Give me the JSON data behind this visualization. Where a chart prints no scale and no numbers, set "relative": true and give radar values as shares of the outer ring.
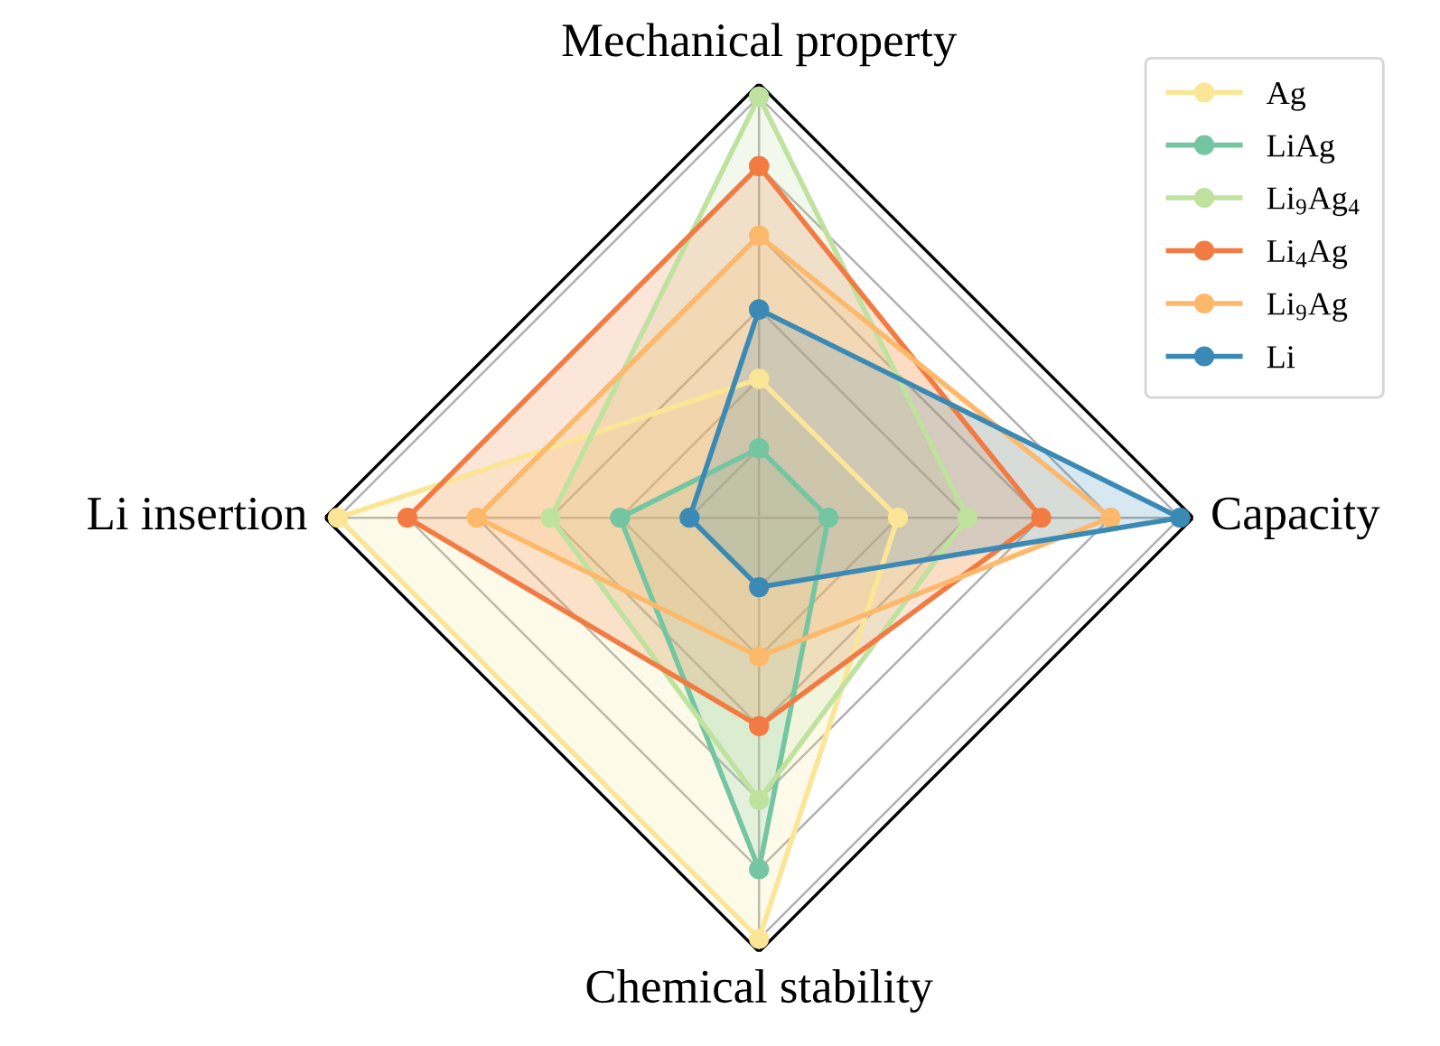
{
  "chart_data": {
    "type": "radar",
    "relative": true,
    "grid": true,
    "legend": "top right",
    "marker": "circle",
    "line_style": "solid",
    "categories": [
      "Mechanical property",
      "Capacity",
      "Chemical stability",
      "Li insertion"
    ],
    "series": [
      {
        "name": "Ag",
        "color": "#fae696",
        "values": [
          0.32,
          0.32,
          0.97,
          0.97
        ]
      },
      {
        "name": "LiAg",
        "color": "#74c6a3",
        "values": [
          0.16,
          0.16,
          0.81,
          0.32
        ]
      },
      {
        "name": "Li$_{9}$Ag$_{4}$",
        "color": "#bfe29f",
        "values": [
          0.97,
          0.48,
          0.65,
          0.48
        ]
      },
      {
        "name": "Li$_{4}$Ag",
        "color": "#f27b43",
        "values": [
          0.81,
          0.65,
          0.48,
          0.81
        ]
      },
      {
        "name": "Li$_{9}$Ag",
        "color": "#fdb96b",
        "values": [
          0.65,
          0.81,
          0.32,
          0.65
        ]
      },
      {
        "name": "Li",
        "color": "#3a8ab5",
        "values": [
          0.48,
          0.97,
          0.16,
          0.16
        ]
      }
    ]
  }
}
